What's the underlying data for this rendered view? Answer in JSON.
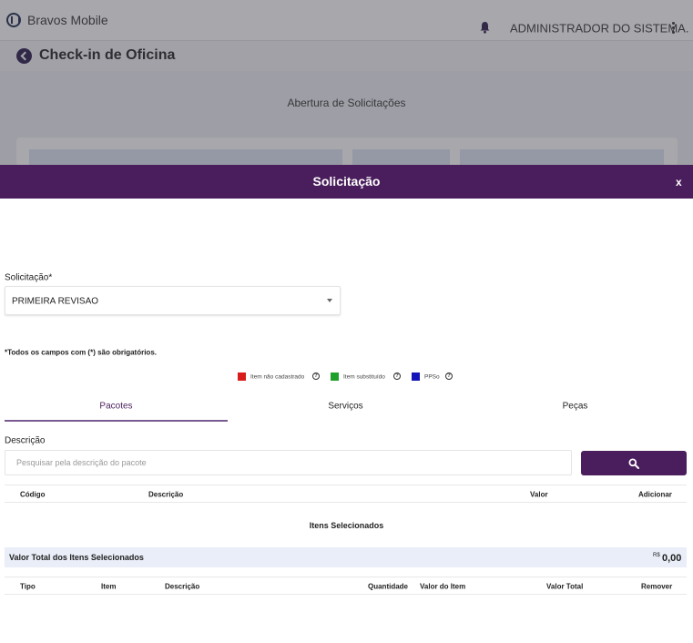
{
  "background": {
    "app_name": "Bravos Mobile",
    "user_name": "ADMINISTRADOR DO SISTEMA.",
    "page_title": "Check-in de Oficina",
    "section_title": "Abertura de Solicitações"
  },
  "modal": {
    "title": "Solicitação",
    "close_label": "x",
    "solicitacao_label": "Solicitação*",
    "solicitacao_value": "PRIMEIRA REVISAO",
    "required_note": "*Todos os campos com (*) são obrigatórios.",
    "legend": [
      {
        "label": "Item não cadastrado",
        "color": "#d81b1b"
      },
      {
        "label": "Item substituído",
        "color": "#1ea02a"
      },
      {
        "label": "PPSo",
        "color": "#1414b8"
      }
    ],
    "help_glyph": "?",
    "tabs": [
      {
        "label": "Pacotes",
        "active": true
      },
      {
        "label": "Serviços",
        "active": false
      },
      {
        "label": "Peças",
        "active": false
      }
    ],
    "descricao_label": "Descrição",
    "search_placeholder": "Pesquisar pela descrição do pacote",
    "packages_table": {
      "columns": [
        "Código",
        "Descrição",
        "Valor",
        "Adicionar"
      ]
    },
    "selected_items_title": "Itens Selecionados",
    "total_label": "Valor Total dos Itens Selecionados",
    "total_currency": "R$",
    "total_value": "0,00",
    "selected_table": {
      "columns": [
        "Tipo",
        "Item",
        "Descrição",
        "Quantidade",
        "Valor do Item",
        "Valor Total",
        "Remover"
      ]
    }
  },
  "colors": {
    "accent": "#4a1e5c",
    "total_bar": "#e9eef8"
  }
}
